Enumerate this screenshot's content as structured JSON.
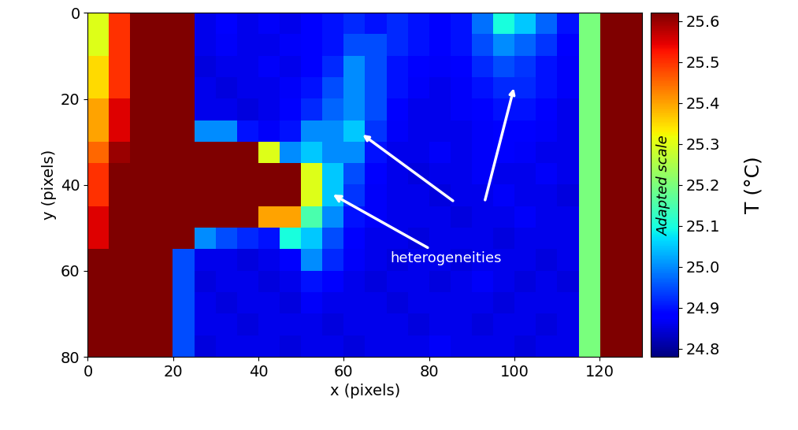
{
  "chart_data": {
    "type": "heatmap",
    "xlabel": "x (pixels)",
    "ylabel": "y (pixels)",
    "xlim": [
      0,
      130
    ],
    "ylim": [
      80,
      0
    ],
    "xticks": [
      0,
      20,
      40,
      60,
      80,
      100,
      120
    ],
    "yticks": [
      0,
      20,
      40,
      60,
      80
    ],
    "color": "jet",
    "annotation": "heterogeneities",
    "colorbar_label": "T (°C)",
    "colorbar_note": "Adapted scale",
    "colorbar_range": [
      24.78,
      25.62
    ],
    "colorbar_ticks": [
      24.8,
      24.9,
      25.0,
      25.1,
      25.2,
      25.3,
      25.4,
      25.5,
      25.6
    ],
    "cells": [
      [
        25.3,
        25.5,
        25.62,
        25.62,
        25.62,
        24.86,
        24.88,
        24.86,
        24.87,
        24.86,
        24.88,
        24.9,
        24.92,
        24.9,
        24.92,
        24.9,
        24.88,
        24.9,
        24.98,
        25.1,
        25.05,
        24.97,
        24.9,
        25.2,
        25.62,
        25.62
      ],
      [
        25.3,
        25.5,
        25.62,
        25.62,
        25.62,
        24.86,
        24.87,
        24.86,
        24.86,
        24.87,
        24.88,
        24.9,
        24.95,
        24.95,
        24.92,
        24.9,
        24.88,
        24.9,
        24.95,
        25.0,
        24.97,
        24.93,
        24.88,
        25.2,
        25.62,
        25.62
      ],
      [
        25.35,
        25.5,
        25.62,
        25.62,
        25.62,
        24.85,
        24.86,
        24.86,
        24.87,
        24.86,
        24.88,
        24.92,
        25.0,
        24.95,
        24.9,
        24.88,
        24.87,
        24.88,
        24.92,
        24.95,
        24.93,
        24.9,
        24.87,
        25.2,
        25.62,
        25.62
      ],
      [
        25.35,
        25.5,
        25.62,
        25.62,
        25.62,
        24.86,
        24.85,
        24.86,
        24.86,
        24.87,
        24.9,
        24.95,
        25.0,
        24.95,
        24.9,
        24.87,
        24.86,
        24.87,
        24.9,
        24.92,
        24.92,
        24.9,
        24.87,
        25.2,
        25.62,
        25.62
      ],
      [
        25.4,
        25.55,
        25.62,
        25.62,
        25.62,
        24.86,
        24.86,
        24.85,
        24.86,
        24.88,
        24.92,
        24.97,
        25.0,
        24.95,
        24.88,
        24.86,
        24.86,
        24.87,
        24.88,
        24.9,
        24.9,
        24.88,
        24.86,
        25.2,
        25.62,
        25.62
      ],
      [
        25.4,
        25.55,
        25.62,
        25.62,
        25.62,
        25.0,
        25.0,
        24.9,
        24.87,
        24.9,
        25.0,
        25.0,
        25.05,
        24.93,
        24.87,
        24.86,
        24.86,
        24.86,
        24.87,
        24.88,
        24.88,
        24.87,
        24.86,
        25.2,
        25.62,
        25.62
      ],
      [
        25.45,
        25.6,
        25.62,
        25.62,
        25.62,
        25.62,
        25.62,
        25.62,
        25.3,
        25.0,
        25.05,
        25.0,
        25.0,
        24.9,
        24.86,
        24.86,
        24.87,
        24.86,
        24.87,
        24.88,
        24.87,
        24.86,
        24.86,
        25.2,
        25.62,
        25.62
      ],
      [
        25.5,
        25.62,
        25.62,
        25.62,
        25.62,
        25.62,
        25.62,
        25.62,
        25.62,
        25.62,
        25.3,
        25.05,
        24.95,
        24.88,
        24.86,
        24.85,
        24.86,
        24.86,
        24.87,
        24.86,
        24.86,
        24.87,
        24.86,
        25.2,
        25.62,
        25.62
      ],
      [
        25.5,
        25.62,
        25.62,
        25.62,
        25.62,
        25.62,
        25.62,
        25.62,
        25.62,
        25.62,
        25.3,
        25.05,
        24.93,
        24.87,
        24.86,
        24.86,
        24.85,
        24.86,
        24.86,
        24.87,
        24.86,
        24.86,
        24.85,
        25.2,
        25.62,
        25.62
      ],
      [
        25.55,
        25.62,
        25.62,
        25.62,
        25.62,
        25.62,
        25.62,
        25.62,
        25.4,
        25.4,
        25.15,
        25.0,
        24.9,
        24.87,
        24.86,
        24.86,
        24.86,
        24.85,
        24.86,
        24.86,
        24.87,
        24.86,
        24.86,
        25.2,
        25.62,
        25.62
      ],
      [
        25.55,
        25.62,
        25.62,
        25.62,
        25.62,
        25.0,
        24.95,
        24.92,
        24.9,
        25.1,
        25.05,
        24.95,
        24.88,
        24.86,
        24.86,
        24.85,
        24.86,
        24.86,
        24.86,
        24.85,
        24.86,
        24.86,
        24.86,
        25.2,
        25.62,
        25.62
      ],
      [
        25.62,
        25.62,
        25.62,
        25.62,
        24.95,
        24.86,
        24.86,
        24.85,
        24.86,
        24.88,
        25.0,
        24.92,
        24.87,
        24.86,
        24.85,
        24.86,
        24.86,
        24.85,
        24.86,
        24.86,
        24.86,
        24.85,
        24.86,
        25.2,
        25.62,
        25.62
      ],
      [
        25.62,
        25.62,
        25.62,
        25.62,
        24.95,
        24.85,
        24.86,
        24.86,
        24.85,
        24.86,
        24.9,
        24.88,
        24.86,
        24.85,
        24.86,
        24.86,
        24.85,
        24.86,
        24.87,
        24.86,
        24.85,
        24.86,
        24.85,
        25.2,
        25.62,
        25.62
      ],
      [
        25.62,
        25.62,
        25.62,
        25.62,
        24.95,
        24.86,
        24.85,
        24.86,
        24.86,
        24.85,
        24.87,
        24.86,
        24.86,
        24.86,
        24.85,
        24.86,
        24.86,
        24.86,
        24.86,
        24.85,
        24.86,
        24.86,
        24.86,
        25.2,
        25.62,
        25.62
      ],
      [
        25.62,
        25.62,
        25.62,
        25.62,
        24.95,
        24.86,
        24.86,
        24.85,
        24.86,
        24.86,
        24.86,
        24.85,
        24.86,
        24.86,
        24.86,
        24.85,
        24.86,
        24.86,
        24.85,
        24.86,
        24.86,
        24.85,
        24.86,
        25.2,
        25.62,
        25.62
      ],
      [
        25.62,
        25.62,
        25.62,
        25.62,
        24.95,
        24.85,
        24.86,
        24.86,
        24.86,
        24.85,
        24.86,
        24.86,
        24.85,
        24.86,
        24.86,
        24.86,
        24.87,
        24.86,
        24.86,
        24.86,
        24.85,
        24.86,
        24.86,
        25.2,
        25.62,
        25.62
      ]
    ]
  }
}
